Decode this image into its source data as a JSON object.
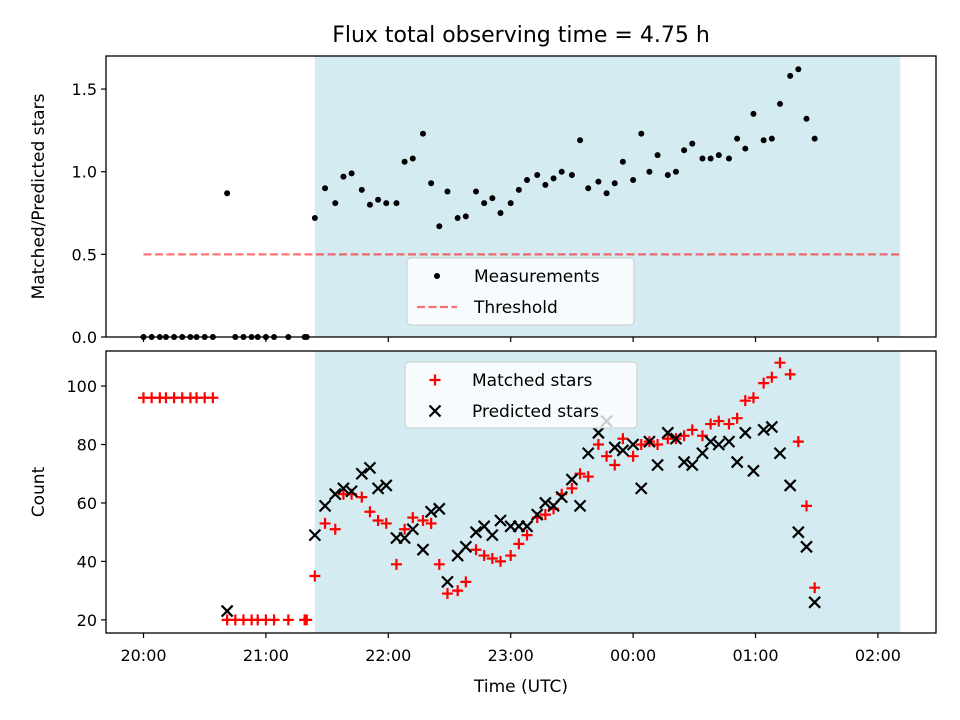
{
  "chart_data": {
    "title": "Flux total observing time = 4.75 h",
    "xlabel": "Time (UTC)",
    "x_ticks": [
      "20:00",
      "21:00",
      "22:00",
      "23:00",
      "00:00",
      "01:00",
      "02:00"
    ],
    "shaded_span": {
      "start": "21:24",
      "end": "02:11",
      "color": "#add8e6"
    },
    "colors": {
      "measurements": "#000000",
      "threshold": "#ff0000",
      "matched": "#ff0000",
      "predicted": "#000000"
    },
    "panels": [
      {
        "type": "scatter",
        "ylabel": "Matched/Predicted stars",
        "ylim": [
          0,
          1.7
        ],
        "y_ticks": [
          0.0,
          0.5,
          1.0,
          1.5
        ],
        "legend": [
          "Measurements",
          "Threshold"
        ],
        "threshold": {
          "value": 0.5,
          "x_start": "20:00",
          "x_end": "02:12"
        },
        "series": [
          {
            "name": "Measurements",
            "points": [
              [
                "20:00",
                0
              ],
              [
                "20:04",
                0
              ],
              [
                "20:08",
                0
              ],
              [
                "20:11",
                0
              ],
              [
                "20:15",
                0
              ],
              [
                "20:19",
                0
              ],
              [
                "20:23",
                0
              ],
              [
                "20:26",
                0
              ],
              [
                "20:30",
                0
              ],
              [
                "20:34",
                0
              ],
              [
                "20:41",
                0.87
              ],
              [
                "20:45",
                0
              ],
              [
                "20:49",
                0
              ],
              [
                "20:53",
                0
              ],
              [
                "20:56",
                0
              ],
              [
                "21:00",
                0
              ],
              [
                "21:04",
                0
              ],
              [
                "21:11",
                0
              ],
              [
                "21:19",
                0
              ],
              [
                "21:20",
                0
              ],
              [
                "21:24",
                0.72
              ],
              [
                "21:29",
                0.9
              ],
              [
                "21:34",
                0.81
              ],
              [
                "21:38",
                0.97
              ],
              [
                "21:42",
                0.99
              ],
              [
                "21:47",
                0.89
              ],
              [
                "21:51",
                0.8
              ],
              [
                "21:55",
                0.83
              ],
              [
                "21:59",
                0.81
              ],
              [
                "22:04",
                0.81
              ],
              [
                "22:08",
                1.06
              ],
              [
                "22:12",
                1.08
              ],
              [
                "22:17",
                1.23
              ],
              [
                "22:21",
                0.93
              ],
              [
                "22:25",
                0.67
              ],
              [
                "22:29",
                0.88
              ],
              [
                "22:34",
                0.72
              ],
              [
                "22:38",
                0.73
              ],
              [
                "22:43",
                0.88
              ],
              [
                "22:47",
                0.81
              ],
              [
                "22:51",
                0.84
              ],
              [
                "22:55",
                0.75
              ],
              [
                "23:00",
                0.81
              ],
              [
                "23:04",
                0.89
              ],
              [
                "23:08",
                0.95
              ],
              [
                "23:13",
                0.98
              ],
              [
                "23:17",
                0.92
              ],
              [
                "23:21",
                0.96
              ],
              [
                "23:25",
                1.0
              ],
              [
                "23:30",
                0.98
              ],
              [
                "23:34",
                1.19
              ],
              [
                "23:38",
                0.9
              ],
              [
                "23:43",
                0.94
              ],
              [
                "23:47",
                0.87
              ],
              [
                "23:51",
                0.93
              ],
              [
                "23:55",
                1.06
              ],
              [
                "00:00",
                0.95
              ],
              [
                "00:04",
                1.23
              ],
              [
                "00:08",
                1.0
              ],
              [
                "00:12",
                1.1
              ],
              [
                "00:17",
                0.98
              ],
              [
                "00:21",
                1.0
              ],
              [
                "00:25",
                1.13
              ],
              [
                "00:29",
                1.17
              ],
              [
                "00:34",
                1.08
              ],
              [
                "00:38",
                1.08
              ],
              [
                "00:42",
                1.1
              ],
              [
                "00:47",
                1.08
              ],
              [
                "00:51",
                1.2
              ],
              [
                "00:55",
                1.14
              ],
              [
                "00:59",
                1.35
              ],
              [
                "01:04",
                1.19
              ],
              [
                "01:08",
                1.2
              ],
              [
                "01:12",
                1.41
              ],
              [
                "01:17",
                1.58
              ],
              [
                "01:21",
                1.62
              ],
              [
                "01:25",
                1.32
              ],
              [
                "01:29",
                1.2
              ]
            ]
          }
        ]
      },
      {
        "type": "scatter",
        "ylabel": "Count",
        "ylim": [
          15.5,
          112
        ],
        "y_ticks": [
          20,
          40,
          60,
          80,
          100
        ],
        "legend": [
          "Matched stars",
          "Predicted stars"
        ],
        "series": [
          {
            "name": "Matched stars",
            "points": [
              [
                "20:00",
                96
              ],
              [
                "20:04",
                96
              ],
              [
                "20:08",
                96
              ],
              [
                "20:11",
                96
              ],
              [
                "20:15",
                96
              ],
              [
                "20:19",
                96
              ],
              [
                "20:23",
                96
              ],
              [
                "20:26",
                96
              ],
              [
                "20:30",
                96
              ],
              [
                "20:34",
                96
              ],
              [
                "20:41",
                20
              ],
              [
                "20:45",
                20
              ],
              [
                "20:49",
                20
              ],
              [
                "20:53",
                20
              ],
              [
                "20:56",
                20
              ],
              [
                "21:00",
                20
              ],
              [
                "21:04",
                20
              ],
              [
                "21:11",
                20
              ],
              [
                "21:19",
                20
              ],
              [
                "21:20",
                20
              ],
              [
                "21:24",
                35
              ],
              [
                "21:29",
                53
              ],
              [
                "21:34",
                51
              ],
              [
                "21:38",
                63
              ],
              [
                "21:42",
                63
              ],
              [
                "21:47",
                62
              ],
              [
                "21:51",
                57
              ],
              [
                "21:55",
                54
              ],
              [
                "21:59",
                53
              ],
              [
                "22:04",
                39
              ],
              [
                "22:08",
                51
              ],
              [
                "22:12",
                55
              ],
              [
                "22:17",
                54
              ],
              [
                "22:21",
                53
              ],
              [
                "22:25",
                39
              ],
              [
                "22:29",
                29
              ],
              [
                "22:34",
                30
              ],
              [
                "22:38",
                33
              ],
              [
                "22:43",
                44
              ],
              [
                "22:47",
                42
              ],
              [
                "22:51",
                41
              ],
              [
                "22:55",
                40
              ],
              [
                "23:00",
                42
              ],
              [
                "23:04",
                46
              ],
              [
                "23:08",
                49
              ],
              [
                "23:13",
                55
              ],
              [
                "23:17",
                56
              ],
              [
                "23:21",
                58
              ],
              [
                "23:25",
                63
              ],
              [
                "23:30",
                65
              ],
              [
                "23:34",
                70
              ],
              [
                "23:38",
                69
              ],
              [
                "23:43",
                80
              ],
              [
                "23:47",
                76
              ],
              [
                "23:51",
                73
              ],
              [
                "23:55",
                82
              ],
              [
                "00:00",
                76
              ],
              [
                "00:04",
                80
              ],
              [
                "00:08",
                81
              ],
              [
                "00:12",
                80
              ],
              [
                "00:17",
                82
              ],
              [
                "00:21",
                82
              ],
              [
                "00:25",
                83
              ],
              [
                "00:29",
                85
              ],
              [
                "00:34",
                83
              ],
              [
                "00:38",
                87
              ],
              [
                "00:42",
                88
              ],
              [
                "00:47",
                87
              ],
              [
                "00:51",
                89
              ],
              [
                "00:55",
                95
              ],
              [
                "00:59",
                96
              ],
              [
                "01:04",
                101
              ],
              [
                "01:08",
                103
              ],
              [
                "01:12",
                108
              ],
              [
                "01:17",
                104
              ],
              [
                "01:21",
                81
              ],
              [
                "01:25",
                59
              ],
              [
                "01:29",
                31
              ]
            ]
          },
          {
            "name": "Predicted stars",
            "points": [
              [
                "20:41",
                23
              ],
              [
                "21:24",
                49
              ],
              [
                "21:29",
                59
              ],
              [
                "21:34",
                63
              ],
              [
                "21:38",
                65
              ],
              [
                "21:42",
                64
              ],
              [
                "21:47",
                70
              ],
              [
                "21:51",
                72
              ],
              [
                "21:55",
                65
              ],
              [
                "21:59",
                66
              ],
              [
                "22:04",
                48
              ],
              [
                "22:08",
                48
              ],
              [
                "22:12",
                51
              ],
              [
                "22:17",
                44
              ],
              [
                "22:21",
                57
              ],
              [
                "22:25",
                58
              ],
              [
                "22:29",
                33
              ],
              [
                "22:34",
                42
              ],
              [
                "22:38",
                45
              ],
              [
                "22:43",
                50
              ],
              [
                "22:47",
                52
              ],
              [
                "22:51",
                49
              ],
              [
                "22:55",
                54
              ],
              [
                "23:00",
                52
              ],
              [
                "23:04",
                52
              ],
              [
                "23:08",
                52
              ],
              [
                "23:13",
                56
              ],
              [
                "23:17",
                60
              ],
              [
                "23:21",
                59
              ],
              [
                "23:25",
                62
              ],
              [
                "23:30",
                68
              ],
              [
                "23:34",
                59
              ],
              [
                "23:38",
                77
              ],
              [
                "23:43",
                84
              ],
              [
                "23:47",
                88
              ],
              [
                "23:51",
                79
              ],
              [
                "23:55",
                78
              ],
              [
                "00:00",
                80
              ],
              [
                "00:04",
                65
              ],
              [
                "00:08",
                81
              ],
              [
                "00:12",
                73
              ],
              [
                "00:17",
                84
              ],
              [
                "00:21",
                82
              ],
              [
                "00:25",
                74
              ],
              [
                "00:29",
                73
              ],
              [
                "00:34",
                77
              ],
              [
                "00:38",
                81
              ],
              [
                "00:42",
                80
              ],
              [
                "00:47",
                81
              ],
              [
                "00:51",
                74
              ],
              [
                "00:55",
                84
              ],
              [
                "00:59",
                71
              ],
              [
                "01:04",
                85
              ],
              [
                "01:08",
                86
              ],
              [
                "01:12",
                77
              ],
              [
                "01:17",
                66
              ],
              [
                "01:21",
                50
              ],
              [
                "01:25",
                45
              ],
              [
                "01:29",
                26
              ]
            ]
          }
        ]
      }
    ]
  }
}
